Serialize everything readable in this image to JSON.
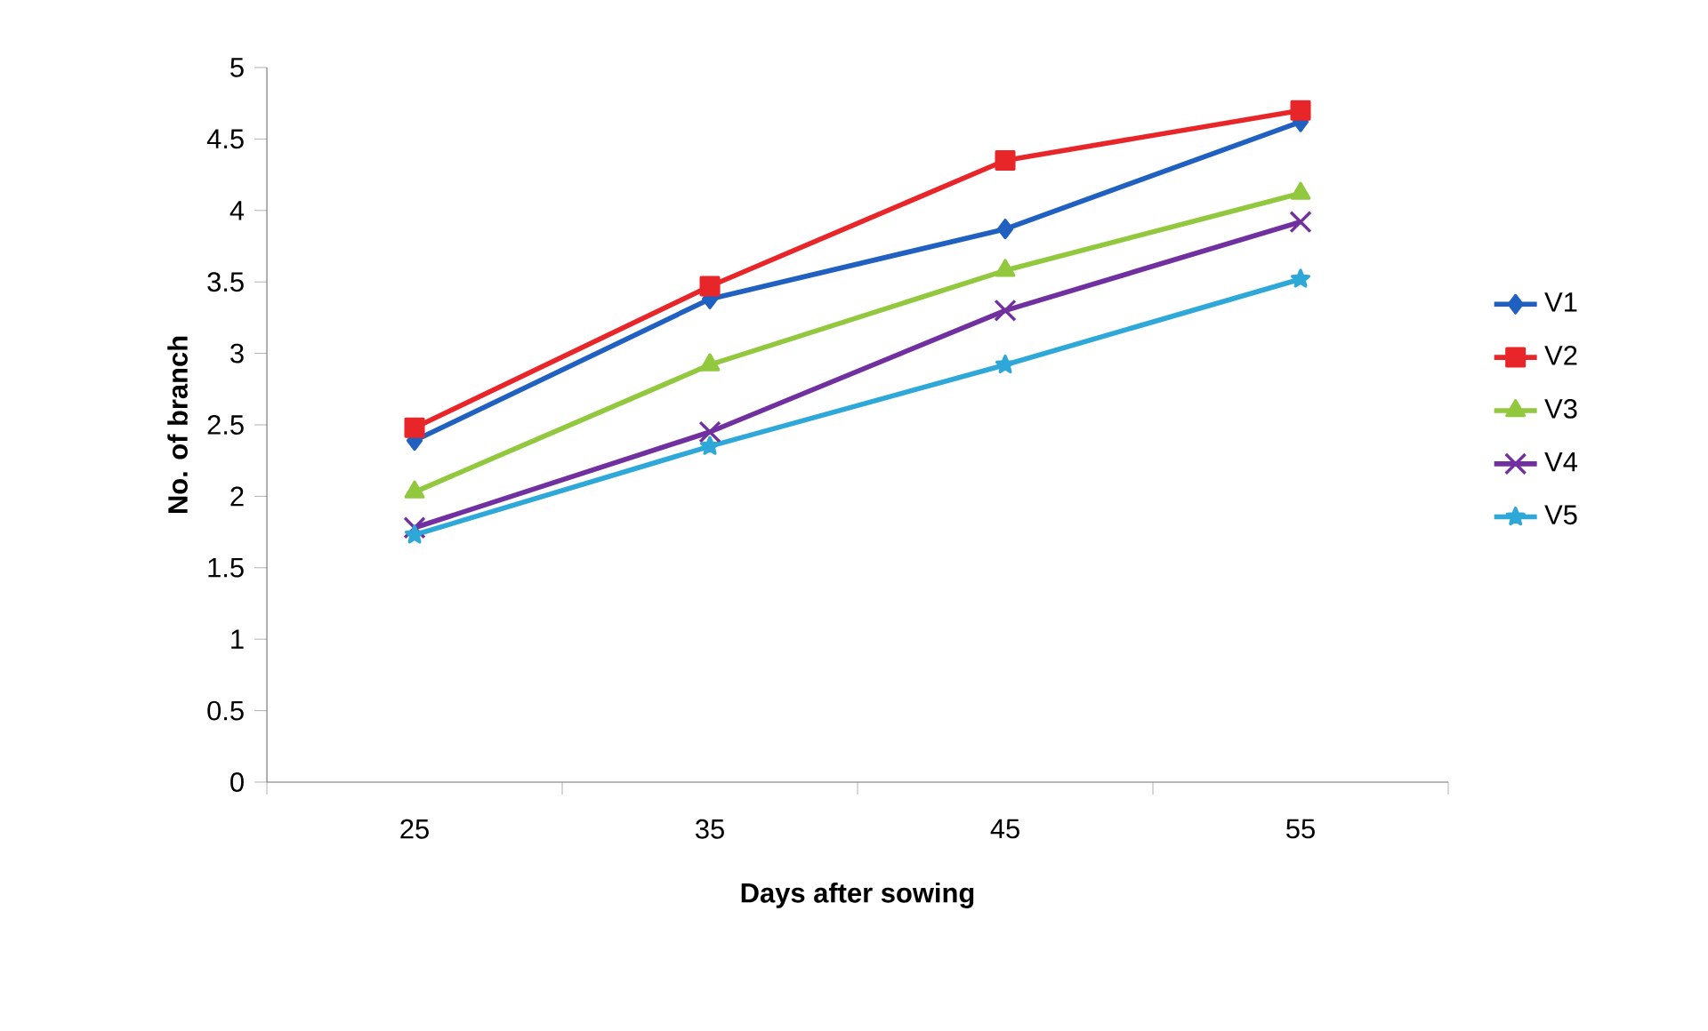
{
  "chart_data": {
    "type": "line",
    "xlabel": "Days after sowing",
    "ylabel": "No. of branch",
    "categories": [
      "25",
      "35",
      "45",
      "55"
    ],
    "ylim": [
      0,
      5
    ],
    "yticks": [
      0,
      0.5,
      1,
      1.5,
      2,
      2.5,
      3,
      3.5,
      4,
      4.5,
      5
    ],
    "legend": "right",
    "grid": false,
    "line_style": "solid",
    "series": [
      {
        "name": "V1",
        "color": "#2060c0",
        "marker": "diamond",
        "values": [
          2.39,
          3.38,
          3.87,
          4.62
        ]
      },
      {
        "name": "V2",
        "color": "#e8262a",
        "marker": "square",
        "values": [
          2.48,
          3.47,
          4.35,
          4.7
        ]
      },
      {
        "name": "V3",
        "color": "#92c83e",
        "marker": "triangle",
        "values": [
          2.03,
          2.92,
          3.58,
          4.12
        ]
      },
      {
        "name": "V4",
        "color": "#7030a0",
        "marker": "cross",
        "values": [
          1.78,
          2.45,
          3.3,
          3.92
        ]
      },
      {
        "name": "V5",
        "color": "#2ea8d8",
        "marker": "star",
        "values": [
          1.73,
          2.35,
          2.92,
          3.52
        ]
      }
    ]
  }
}
